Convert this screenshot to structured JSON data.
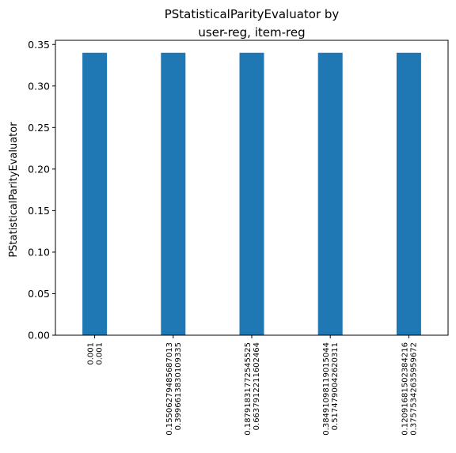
{
  "chart_data": {
    "type": "bar",
    "title": [
      "PStatisticalParityEvaluator by",
      "user-reg, item-reg"
    ],
    "xlabel": "",
    "ylabel": "PStatisticalParityEvaluator",
    "ylim": [
      0,
      0.355
    ],
    "yticks": [
      0.0,
      0.05,
      0.1,
      0.15,
      0.2,
      0.25,
      0.3,
      0.35
    ],
    "ytick_labels": [
      "0.00",
      "0.05",
      "0.10",
      "0.15",
      "0.20",
      "0.25",
      "0.30",
      "0.35"
    ],
    "categories": [
      [
        "0.001",
        "0.001"
      ],
      [
        "0.15506279485687013",
        "0.3996613830109335"
      ],
      [
        "0.18791831772545525",
        "0.6637912211602464"
      ],
      [
        "0.38491098119015044",
        "0.5174790042620311"
      ],
      [
        "0.12091681502384216",
        "0.37575342635959672"
      ]
    ],
    "values": [
      0.34,
      0.34,
      0.34,
      0.34,
      0.34
    ],
    "bar_color": "#1f77b4",
    "grid": false,
    "legend": "none"
  }
}
